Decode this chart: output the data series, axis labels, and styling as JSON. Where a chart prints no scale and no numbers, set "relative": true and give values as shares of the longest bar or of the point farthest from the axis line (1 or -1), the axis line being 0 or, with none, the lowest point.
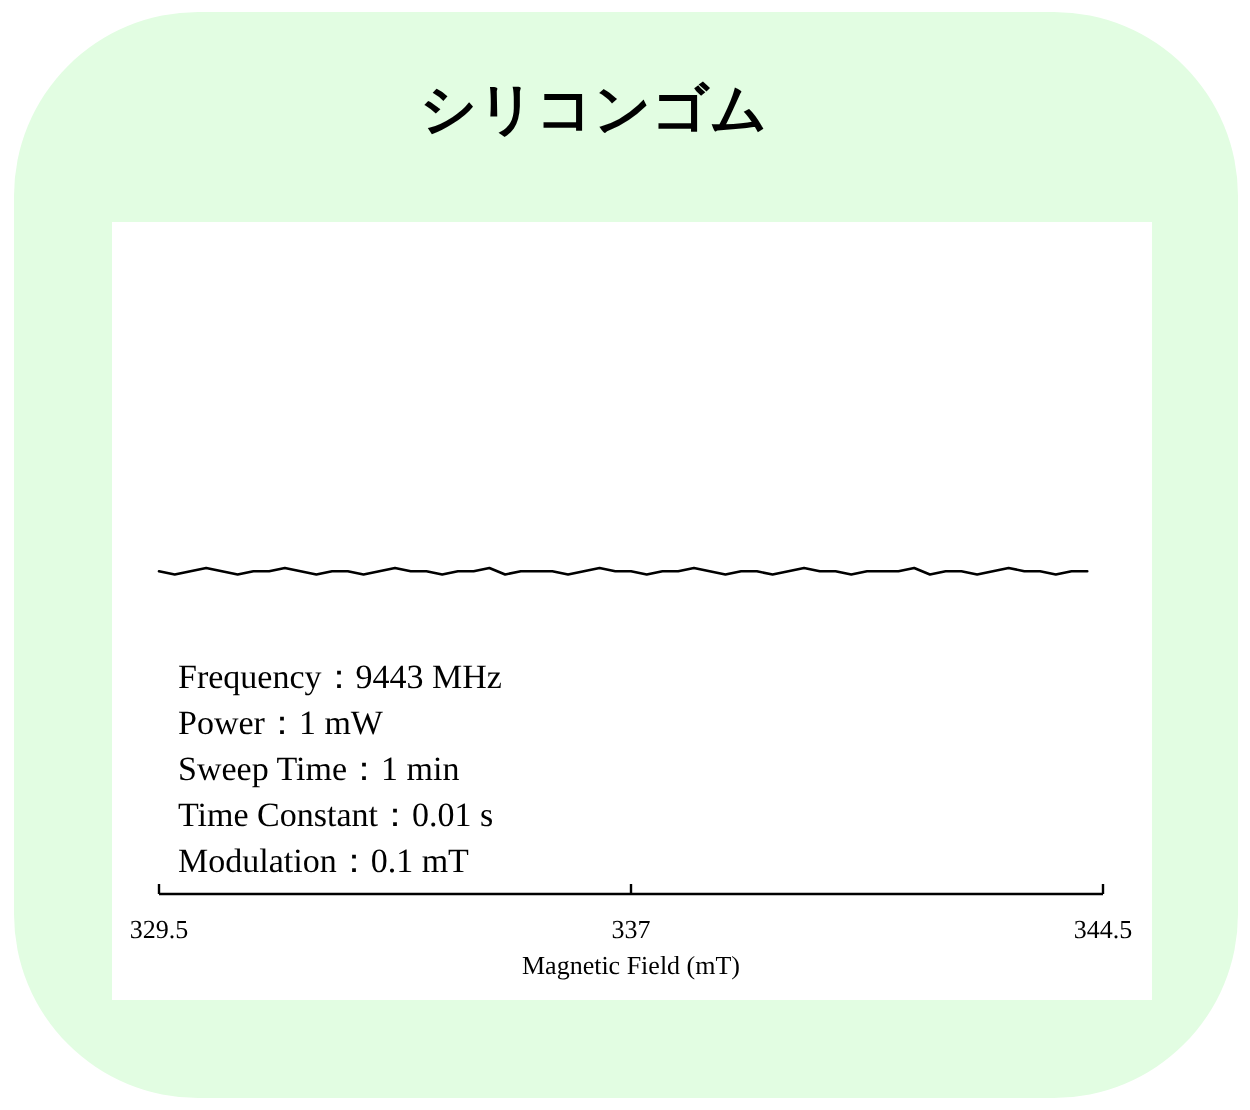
{
  "chart_data": {
    "type": "line",
    "title": "シリコンゴム",
    "xlabel": "Magnetic Field (mT)",
    "relative": true,
    "x": [
      329.5,
      329.75,
      330,
      330.25,
      330.5,
      330.75,
      331,
      331.25,
      331.5,
      331.75,
      332,
      332.25,
      332.5,
      332.75,
      333,
      333.25,
      333.5,
      333.75,
      334,
      334.25,
      334.5,
      334.75,
      335,
      335.25,
      335.5,
      335.75,
      336,
      336.25,
      336.5,
      336.75,
      337,
      337.25,
      337.5,
      337.75,
      338,
      338.25,
      338.5,
      338.75,
      339,
      339.25,
      339.5,
      339.75,
      340,
      340.25,
      340.5,
      340.75,
      341,
      341.25,
      341.5,
      341.75,
      342,
      342.25,
      342.5,
      342.75,
      343,
      343.25,
      343.5,
      343.75,
      344,
      344.25
    ],
    "series": [
      {
        "color": "#000000",
        "values": [
          0.99,
          0.98,
          0.99,
          1,
          0.99,
          0.98,
          0.99,
          0.99,
          1,
          0.99,
          0.98,
          0.99,
          0.99,
          0.98,
          0.99,
          1,
          0.99,
          0.99,
          0.98,
          0.99,
          0.99,
          1,
          0.98,
          0.99,
          0.99,
          0.99,
          0.98,
          0.99,
          1,
          0.99,
          0.99,
          0.98,
          0.99,
          0.99,
          1,
          0.99,
          0.98,
          0.99,
          0.99,
          0.98,
          0.99,
          1,
          0.99,
          0.99,
          0.98,
          0.99,
          0.99,
          0.99,
          1,
          0.98,
          0.99,
          0.99,
          0.98,
          0.99,
          1,
          0.99,
          0.99,
          0.98,
          0.99,
          0.99
        ]
      }
    ],
    "xlim": [
      329.5,
      344.5
    ],
    "xticks": [
      329.5,
      337,
      344.5
    ],
    "line_style": "solid",
    "annotations": [
      "Frequency：9443 MHz",
      "Power：1 mW",
      "Sweep Time：1 min",
      "Time Constant：0.01 s",
      "Modulation：0.1 mT"
    ]
  }
}
